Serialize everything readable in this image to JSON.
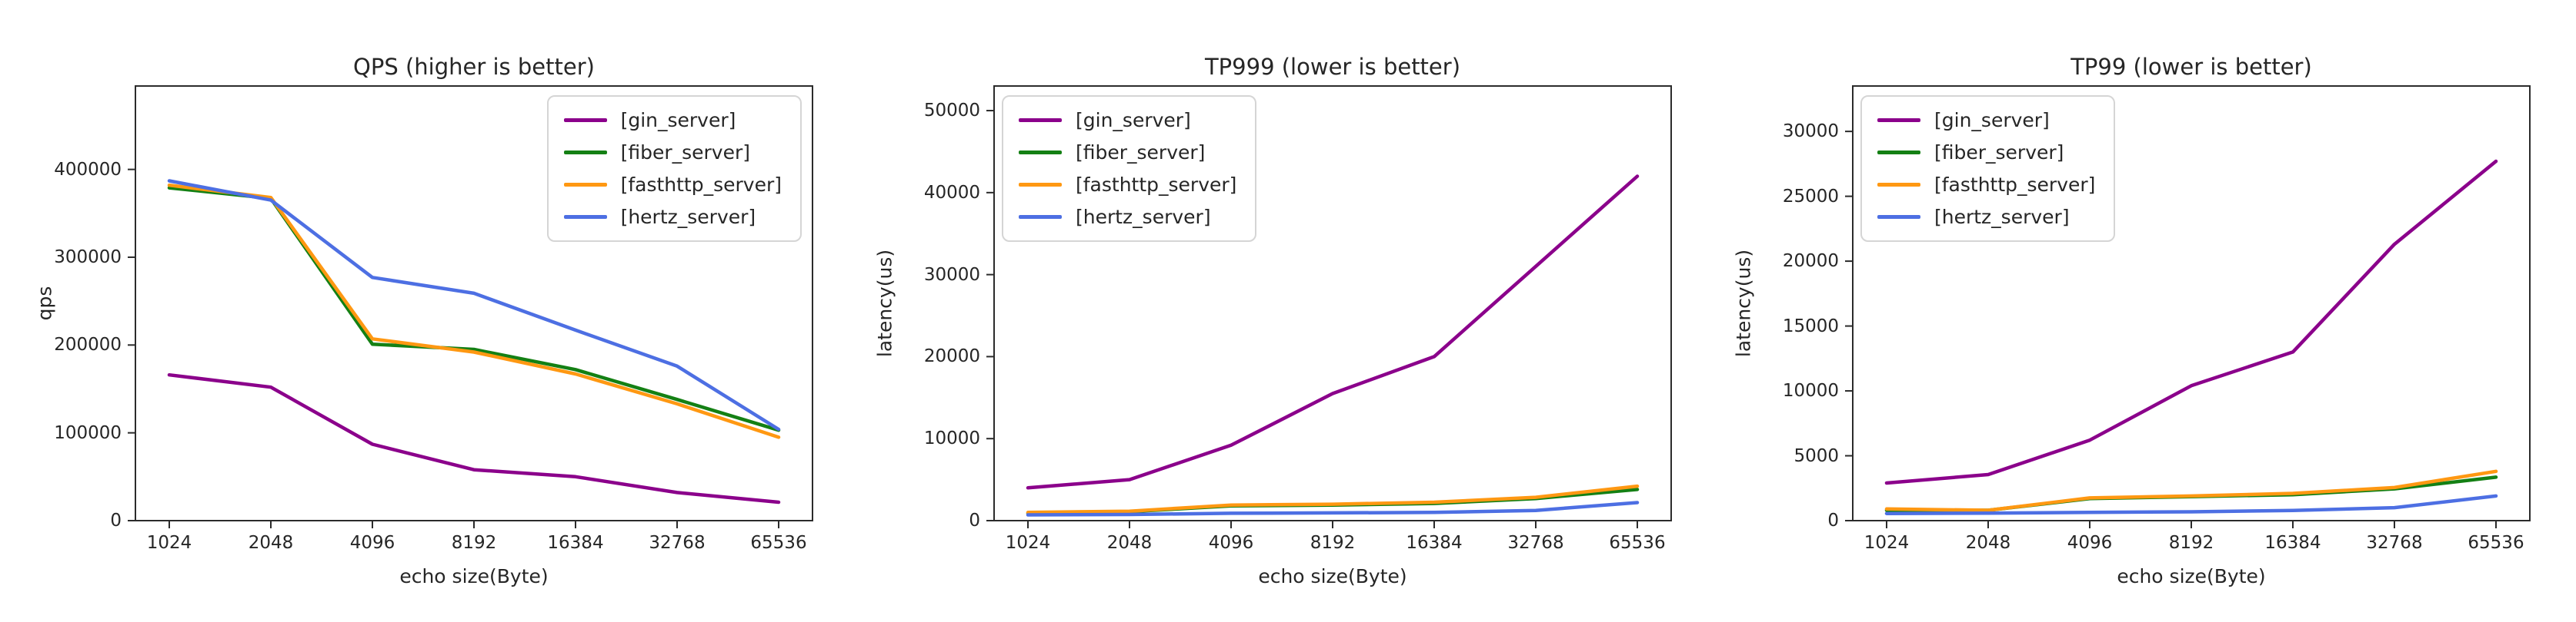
{
  "page": {
    "background": "#ffffff"
  },
  "chart_data": [
    {
      "type": "line",
      "title": "QPS (higher is better)",
      "xlabel": "echo size(Byte)",
      "ylabel": "qps",
      "categories": [
        "1024",
        "2048",
        "4096",
        "8192",
        "16384",
        "32768",
        "65536"
      ],
      "yticks": [
        0,
        100000,
        200000,
        300000,
        400000
      ],
      "ylim": [
        0,
        495000
      ],
      "grid": false,
      "legend_position": "upper right",
      "series": [
        {
          "name": "[gin_server]",
          "color": "#8B008B",
          "values": [
            166000,
            152000,
            87000,
            58000,
            50000,
            32000,
            21000
          ]
        },
        {
          "name": "[fiber_server]",
          "color": "#148014",
          "values": [
            379000,
            367000,
            201000,
            195000,
            172000,
            138000,
            103000
          ]
        },
        {
          "name": "[fasthttp_server]",
          "color": "#FF9812",
          "values": [
            382000,
            368000,
            207000,
            192000,
            167000,
            133000,
            95000
          ]
        },
        {
          "name": "[hertz_server]",
          "color": "#4D6FE3",
          "values": [
            387000,
            365000,
            277000,
            259000,
            217000,
            176000,
            104000
          ]
        }
      ]
    },
    {
      "type": "line",
      "title": "TP999 (lower is better)",
      "xlabel": "echo size(Byte)",
      "ylabel": "latency(us)",
      "categories": [
        "1024",
        "2048",
        "4096",
        "8192",
        "16384",
        "32768",
        "65536"
      ],
      "yticks": [
        0,
        10000,
        20000,
        30000,
        40000,
        50000
      ],
      "ylim": [
        0,
        53000
      ],
      "grid": false,
      "legend_position": "upper left",
      "series": [
        {
          "name": "[gin_server]",
          "color": "#8B008B",
          "values": [
            4000,
            5000,
            9200,
            15500,
            20000,
            31000,
            42000
          ]
        },
        {
          "name": "[fiber_server]",
          "color": "#148014",
          "values": [
            900,
            1100,
            1800,
            1900,
            2100,
            2700,
            3800
          ]
        },
        {
          "name": "[fasthttp_server]",
          "color": "#FF9812",
          "values": [
            1000,
            1150,
            1900,
            2000,
            2250,
            2850,
            4200
          ]
        },
        {
          "name": "[hertz_server]",
          "color": "#4D6FE3",
          "values": [
            700,
            750,
            900,
            950,
            1000,
            1250,
            2200
          ]
        }
      ]
    },
    {
      "type": "line",
      "title": "TP99 (lower is better)",
      "xlabel": "echo size(Byte)",
      "ylabel": "latency(us)",
      "categories": [
        "1024",
        "2048",
        "4096",
        "8192",
        "16384",
        "32768",
        "65536"
      ],
      "yticks": [
        0,
        5000,
        10000,
        15000,
        20000,
        25000,
        30000
      ],
      "ylim": [
        0,
        33500
      ],
      "grid": false,
      "legend_position": "upper left",
      "series": [
        {
          "name": "[gin_server]",
          "color": "#8B008B",
          "values": [
            2900,
            3550,
            6200,
            10400,
            13000,
            21300,
            27700
          ]
        },
        {
          "name": "[fiber_server]",
          "color": "#148014",
          "values": [
            800,
            800,
            1700,
            1850,
            2000,
            2450,
            3350
          ]
        },
        {
          "name": "[fasthttp_server]",
          "color": "#FF9812",
          "values": [
            900,
            800,
            1750,
            1900,
            2100,
            2550,
            3800
          ]
        },
        {
          "name": "[hertz_server]",
          "color": "#4D6FE3",
          "values": [
            550,
            580,
            640,
            680,
            780,
            1000,
            1900
          ]
        }
      ]
    }
  ]
}
